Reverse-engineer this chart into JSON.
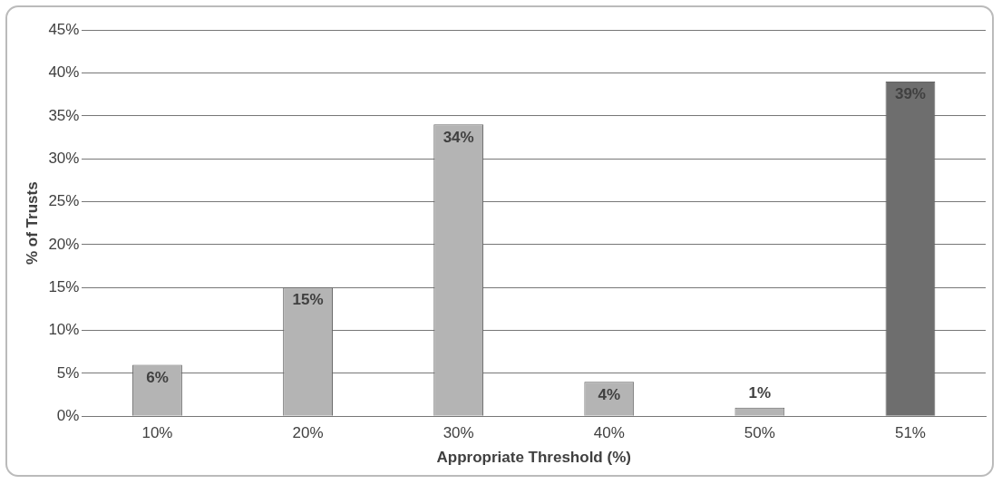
{
  "chart_data": {
    "type": "bar",
    "xlabel": "Appropriate Threshold (%)",
    "ylabel": "% of Trusts",
    "categories": [
      "10%",
      "20%",
      "30%",
      "40%",
      "50%",
      "51%"
    ],
    "values": [
      6,
      15,
      34,
      4,
      1,
      39
    ],
    "value_labels": [
      "6%",
      "15%",
      "34%",
      "4%",
      "1%",
      "39%"
    ],
    "colors": [
      "#b4b4b4",
      "#b4b4b4",
      "#b4b4b4",
      "#b4b4b4",
      "#b4b4b4",
      "#6e6e6e"
    ],
    "ylim": [
      0,
      45
    ],
    "yticks": [
      {
        "value": 0,
        "label": "0%"
      },
      {
        "value": 5,
        "label": "5%"
      },
      {
        "value": 10,
        "label": "10%"
      },
      {
        "value": 15,
        "label": "15%"
      },
      {
        "value": 20,
        "label": "20%"
      },
      {
        "value": 25,
        "label": "25%"
      },
      {
        "value": 30,
        "label": "30%"
      },
      {
        "value": 35,
        "label": "35%"
      },
      {
        "value": 40,
        "label": "40%"
      },
      {
        "value": 45,
        "label": "45%"
      }
    ],
    "grid": "y"
  }
}
